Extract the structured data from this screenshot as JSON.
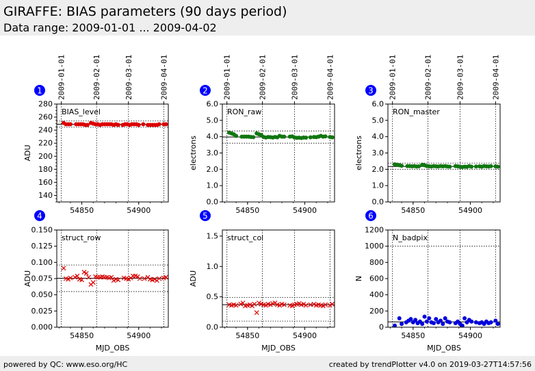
{
  "header": {
    "title": "GIRAFFE: BIAS parameters (90 days period)",
    "subtitle": "Data range: 2009-01-01 ... 2009-04-02"
  },
  "footer": {
    "left": "powered by QC: www.eso.org/HC",
    "right": "created by trendPlotter v4.0 on 2019-03-27T14:57:56"
  },
  "colors": {
    "red": "#dd0000",
    "green": "#117711",
    "blue": "#0000dd",
    "badge": "#0000ff"
  },
  "chart_data": [
    {
      "type": "scatter",
      "panel": "1",
      "label": "BIAS_level",
      "ylabel": "ADU",
      "xlabel": "",
      "xlim": [
        54828,
        54926
      ],
      "ylim": [
        130,
        280
      ],
      "yticks": [
        140,
        160,
        180,
        200,
        220,
        240,
        260,
        280
      ],
      "yticklabels": [
        "140",
        "160",
        "180",
        "200",
        "220",
        "240",
        "260",
        "280"
      ],
      "xticks": [
        54850,
        54900
      ],
      "xticklabels": [
        "54850",
        "54900"
      ],
      "top_ticks": [
        "2009-01-01",
        "2009-02-01",
        "2009-03-01",
        "2009-04-01"
      ],
      "top_tick_mjd": [
        54832,
        54863,
        54891,
        54922
      ],
      "ref_line": 249,
      "limit_lines": [
        244.5,
        254
      ],
      "marker": "circle",
      "color": "#dd0000",
      "points": {
        "x": [
          54834,
          54836,
          54838,
          54840,
          54845,
          54847,
          54849,
          54851,
          54853,
          54855,
          54858,
          54860,
          54862,
          54864,
          54866,
          54868,
          54870,
          54872,
          54874,
          54876,
          54878,
          54880,
          54882,
          54886,
          54888,
          54890,
          54892,
          54894,
          54896,
          54898,
          54900,
          54904,
          54908,
          54910,
          54912,
          54914,
          54916,
          54918,
          54922,
          54924
        ],
        "y": [
          251,
          249,
          249,
          249,
          249,
          249,
          249,
          249,
          248,
          248,
          251,
          250,
          249,
          249,
          248,
          249,
          249,
          249,
          249,
          249,
          248,
          249,
          248,
          248,
          249,
          249,
          248,
          249,
          249,
          249,
          248,
          249,
          248,
          248,
          248,
          248,
          248,
          249,
          249,
          249
        ]
      }
    },
    {
      "type": "scatter",
      "panel": "2",
      "label": "RON_raw",
      "ylabel": "electrons",
      "xlabel": "",
      "xlim": [
        54828,
        54926
      ],
      "ylim": [
        0,
        6
      ],
      "yticks": [
        0,
        1,
        2,
        3,
        4,
        5,
        6
      ],
      "yticklabels": [
        "0.0",
        "1.0",
        "2.0",
        "3.0",
        "4.0",
        "5.0",
        "6.0"
      ],
      "xticks": [
        54850,
        54900
      ],
      "xticklabels": [
        "54850",
        "54900"
      ],
      "top_ticks": [
        "2009-01-01",
        "2009-02-01",
        "2009-03-01",
        "2009-04-01"
      ],
      "top_tick_mjd": [
        54832,
        54863,
        54891,
        54922
      ],
      "ref_line": 3.98,
      "limit_lines": [
        3.6,
        4.35
      ],
      "marker": "circle",
      "color": "#117711",
      "points": {
        "x": [
          54834,
          54836,
          54838,
          54840,
          54845,
          54847,
          54849,
          54851,
          54853,
          54855,
          54858,
          54860,
          54862,
          54864,
          54866,
          54868,
          54870,
          54872,
          54874,
          54876,
          54878,
          54880,
          54882,
          54887,
          54889,
          54891,
          54893,
          54895,
          54897,
          54899,
          54901,
          54905,
          54908,
          54910,
          54912,
          54914,
          54916,
          54918,
          54922,
          54924
        ],
        "y": [
          4.25,
          4.2,
          4.15,
          4.05,
          4.0,
          4.0,
          4.0,
          4.0,
          3.98,
          3.97,
          4.2,
          4.15,
          4.1,
          3.98,
          3.95,
          3.98,
          3.97,
          3.95,
          3.98,
          3.96,
          4.05,
          4.0,
          4.0,
          4.0,
          4.02,
          3.95,
          3.93,
          3.94,
          3.92,
          3.95,
          3.94,
          3.96,
          3.98,
          3.97,
          4.0,
          4.05,
          4.0,
          4.02,
          3.98,
          3.96
        ]
      }
    },
    {
      "type": "scatter",
      "panel": "3",
      "label": "RON_master",
      "ylabel": "electrons",
      "xlabel": "",
      "xlim": [
        54828,
        54926
      ],
      "ylim": [
        0,
        6
      ],
      "yticks": [
        0,
        1,
        2,
        3,
        4,
        5,
        6
      ],
      "yticklabels": [
        "0.0",
        "1.0",
        "2.0",
        "3.0",
        "4.0",
        "5.0",
        "6.0"
      ],
      "xticks": [
        54850,
        54900
      ],
      "xticklabels": [
        "54850",
        "54900"
      ],
      "top_ticks": [
        "2009-01-01",
        "2009-02-01",
        "2009-03-01",
        "2009-04-01"
      ],
      "top_tick_mjd": [
        54832,
        54863,
        54891,
        54922
      ],
      "ref_line": 2.17,
      "limit_lines": [
        2.0,
        2.38
      ],
      "marker": "circle",
      "color": "#117711",
      "points": {
        "x": [
          54834,
          54836,
          54838,
          54840,
          54845,
          54847,
          54849,
          54851,
          54853,
          54855,
          54858,
          54860,
          54862,
          54864,
          54866,
          54868,
          54870,
          54872,
          54874,
          54876,
          54878,
          54880,
          54882,
          54887,
          54889,
          54891,
          54893,
          54895,
          54897,
          54899,
          54901,
          54905,
          54908,
          54910,
          54912,
          54914,
          54916,
          54918,
          54922,
          54924
        ],
        "y": [
          2.3,
          2.28,
          2.25,
          2.22,
          2.2,
          2.2,
          2.18,
          2.2,
          2.17,
          2.18,
          2.28,
          2.25,
          2.2,
          2.18,
          2.17,
          2.2,
          2.18,
          2.17,
          2.2,
          2.18,
          2.2,
          2.17,
          2.16,
          2.2,
          2.18,
          2.15,
          2.14,
          2.16,
          2.15,
          2.2,
          2.16,
          2.17,
          2.18,
          2.16,
          2.2,
          2.18,
          2.17,
          2.19,
          2.18,
          2.16
        ]
      }
    },
    {
      "type": "scatter",
      "panel": "4",
      "label": "struct_row",
      "ylabel": "ADU",
      "xlabel": "MJD_OBS",
      "xlim": [
        54828,
        54926
      ],
      "ylim": [
        0,
        0.15
      ],
      "yticks": [
        0,
        0.025,
        0.05,
        0.075,
        0.1,
        0.125,
        0.15
      ],
      "yticklabels": [
        "0.000",
        "0.025",
        "0.050",
        "0.075",
        "0.100",
        "0.125",
        "0.150"
      ],
      "xticks": [
        54850,
        54900
      ],
      "xticklabels": [
        "54850",
        "54900"
      ],
      "ref_line": 0.0755,
      "limit_lines": [
        0.055,
        0.096
      ],
      "marker": "x",
      "color": "#dd0000",
      "points": {
        "x": [
          54834,
          54836,
          54838,
          54840,
          54844,
          54846,
          54848,
          54850,
          54852,
          54854,
          54856,
          54858,
          54860,
          54862,
          54864,
          54866,
          54868,
          54870,
          54872,
          54874,
          54876,
          54878,
          54880,
          54882,
          54887,
          54889,
          54891,
          54893,
          54895,
          54897,
          54899,
          54901,
          54905,
          54908,
          54910,
          54912,
          54914,
          54916,
          54918,
          54922,
          54924
        ],
        "y": [
          0.091,
          0.075,
          0.074,
          0.076,
          0.077,
          0.079,
          0.074,
          0.073,
          0.085,
          0.083,
          0.077,
          0.066,
          0.069,
          0.078,
          0.077,
          0.077,
          0.078,
          0.077,
          0.077,
          0.076,
          0.077,
          0.072,
          0.074,
          0.073,
          0.076,
          0.075,
          0.074,
          0.076,
          0.079,
          0.079,
          0.078,
          0.075,
          0.075,
          0.077,
          0.074,
          0.073,
          0.074,
          0.072,
          0.075,
          0.076,
          0.077
        ]
      }
    },
    {
      "type": "scatter",
      "panel": "5",
      "label": "struct_col",
      "ylabel": "ADU",
      "xlabel": "MJD_OBS",
      "xlim": [
        54828,
        54926
      ],
      "ylim": [
        0,
        1.6
      ],
      "yticks": [
        0,
        0.5,
        1.0,
        1.5
      ],
      "yticklabels": [
        "0.0",
        "0.5",
        "1.0",
        "1.5"
      ],
      "xticks": [
        54850,
        54900
      ],
      "xticklabels": [
        "54850",
        "54900"
      ],
      "ref_line": 0.37,
      "limit_lines": [
        0.1,
        0.49
      ],
      "marker": "x",
      "color": "#dd0000",
      "points": {
        "x": [
          54834,
          54836,
          54838,
          54840,
          54844,
          54846,
          54848,
          54850,
          54852,
          54854,
          54856,
          54858,
          54860,
          54862,
          54864,
          54866,
          54868,
          54870,
          54872,
          54874,
          54876,
          54878,
          54880,
          54882,
          54887,
          54889,
          54891,
          54893,
          54895,
          54897,
          54899,
          54901,
          54905,
          54908,
          54910,
          54912,
          54914,
          54916,
          54918,
          54922,
          54924
        ],
        "y": [
          0.37,
          0.36,
          0.37,
          0.36,
          0.38,
          0.4,
          0.35,
          0.36,
          0.37,
          0.35,
          0.38,
          0.24,
          0.4,
          0.38,
          0.37,
          0.36,
          0.38,
          0.37,
          0.39,
          0.4,
          0.37,
          0.36,
          0.38,
          0.37,
          0.36,
          0.35,
          0.37,
          0.38,
          0.39,
          0.37,
          0.38,
          0.36,
          0.37,
          0.38,
          0.36,
          0.37,
          0.36,
          0.35,
          0.37,
          0.36,
          0.38
        ]
      }
    },
    {
      "type": "scatter",
      "panel": "6",
      "label": "N_badpix",
      "ylabel": "N",
      "xlabel": "MJD_OBS",
      "xlim": [
        54828,
        54926
      ],
      "ylim": [
        0,
        1200
      ],
      "yticks": [
        0,
        200,
        400,
        600,
        800,
        1000,
        1200
      ],
      "yticklabels": [
        "0",
        "200",
        "400",
        "600",
        "800",
        "1000",
        "1200"
      ],
      "xticks": [
        54850,
        54900
      ],
      "xticklabels": [
        "54850",
        "54900"
      ],
      "ref_line": 65,
      "limit_lines": [
        1000,
        0
      ],
      "marker": "circle",
      "color": "#0000dd",
      "points": {
        "x": [
          54834,
          54838,
          54840,
          54844,
          54846,
          54848,
          54850,
          54852,
          54854,
          54856,
          54858,
          54860,
          54862,
          54864,
          54866,
          54868,
          54870,
          54872,
          54874,
          54876,
          54878,
          54880,
          54882,
          54887,
          54889,
          54891,
          54893,
          54895,
          54897,
          54899,
          54901,
          54905,
          54908,
          54910,
          54912,
          54914,
          54916,
          54918,
          54922,
          54924
        ],
        "y": [
          20,
          110,
          40,
          60,
          80,
          100,
          60,
          90,
          50,
          70,
          40,
          130,
          70,
          110,
          60,
          50,
          100,
          60,
          80,
          40,
          110,
          70,
          60,
          50,
          70,
          40,
          20,
          110,
          60,
          90,
          70,
          60,
          50,
          60,
          40,
          70,
          50,
          60,
          80,
          40
        ]
      }
    }
  ]
}
